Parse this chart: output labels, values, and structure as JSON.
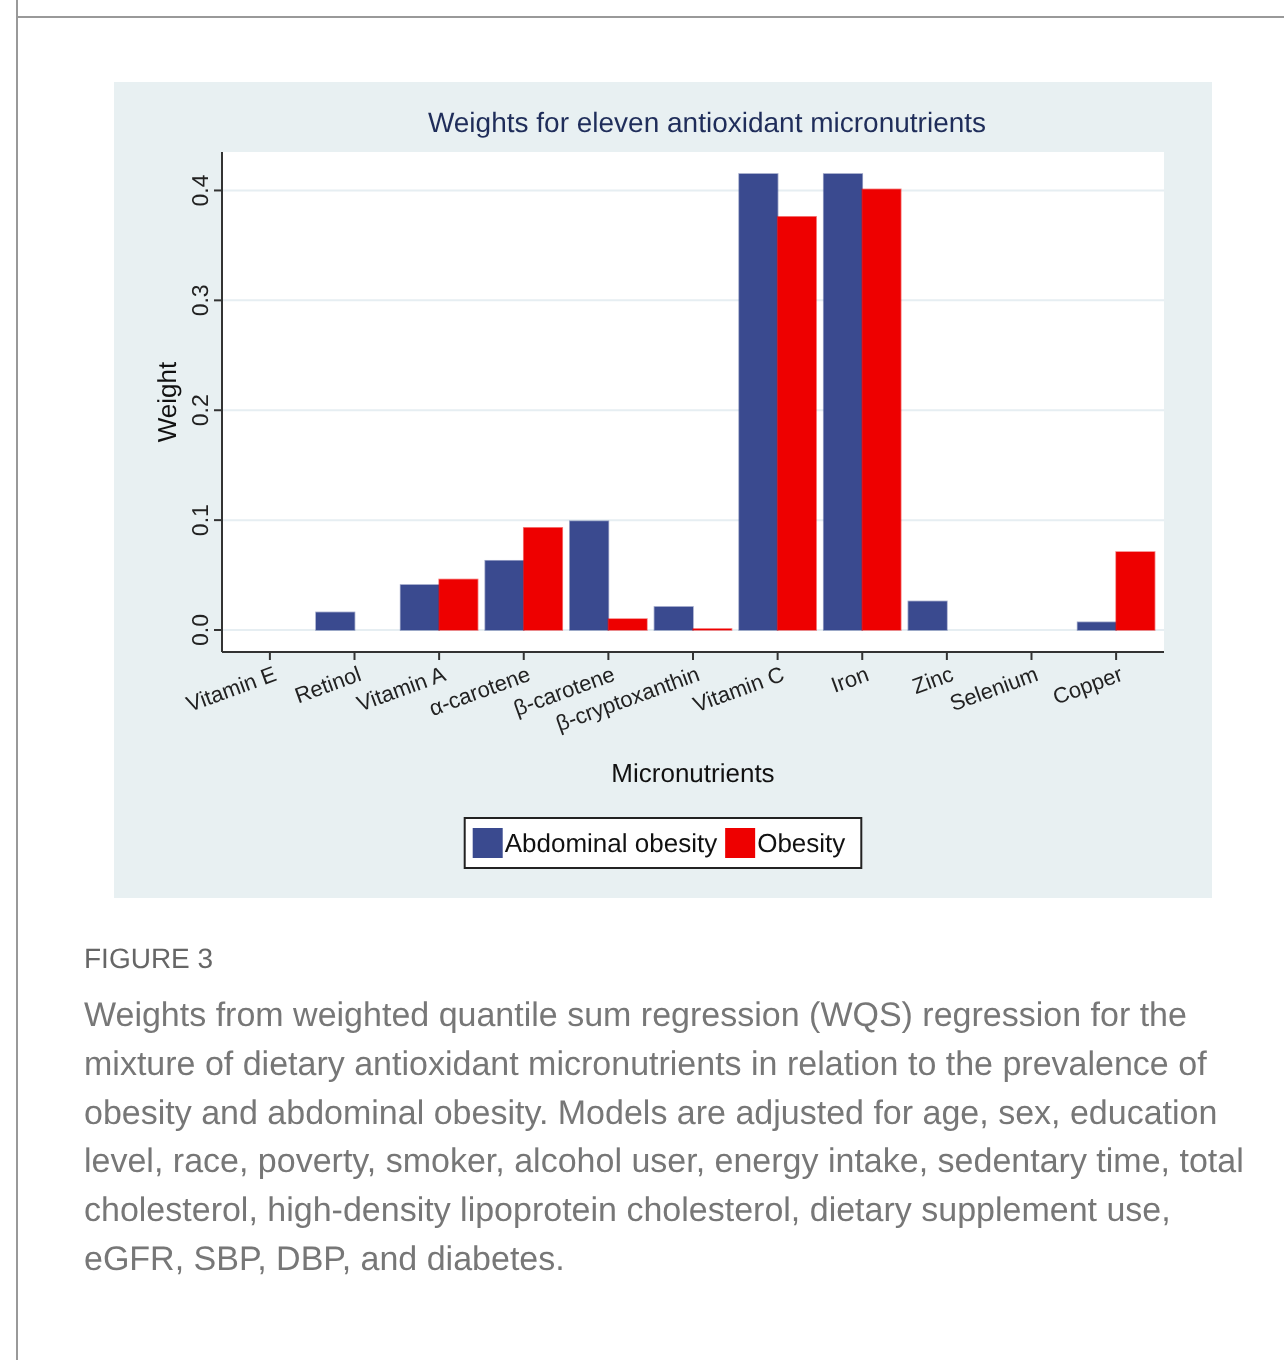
{
  "chart_data": {
    "type": "bar",
    "title": "Weights for eleven antioxidant micronutrients",
    "xlabel": "Micronutrients",
    "ylabel": "Weight",
    "categories": [
      "Vitamin E",
      "Retinol",
      "Vitamin A",
      "α-carotene",
      "β-carotene",
      "β-cryptoxanthin",
      "Vitamin C",
      "Iron",
      "Zinc",
      "Selenium",
      "Copper"
    ],
    "series": [
      {
        "name": "Abdominal obesity",
        "color": "#3a4a8f",
        "values": [
          0,
          0.016,
          0.041,
          0.063,
          0.099,
          0.021,
          0.415,
          0.415,
          0.026,
          0,
          0.007
        ]
      },
      {
        "name": "Obesity",
        "color": "#ee0000",
        "values": [
          0,
          0,
          0.046,
          0.093,
          0.01,
          0.001,
          0.376,
          0.401,
          0,
          0,
          0.071
        ]
      }
    ],
    "ylim": [
      -0.02,
      0.435
    ],
    "yticks": [
      {
        "value": 0,
        "label": "0.0"
      },
      0.1,
      0.2,
      0.3,
      0.4
    ],
    "grid": "y",
    "legend": "bottom",
    "annotations": [
      "FIGURE 3",
      "Weights from weighted quantile sum regression (WQS) regression for the mixture of dietary antioxidant micronutrients in relation to the prevalence of obesity and abdominal obesity. Models are adjusted for age, sex, education level, race, poverty, smoker, alcohol user, energy intake, sedentary time, total cholesterol, high-density lipoprotein cholesterol, dietary supplement use, eGFR, SBP, DBP, and diabetes."
    ]
  }
}
